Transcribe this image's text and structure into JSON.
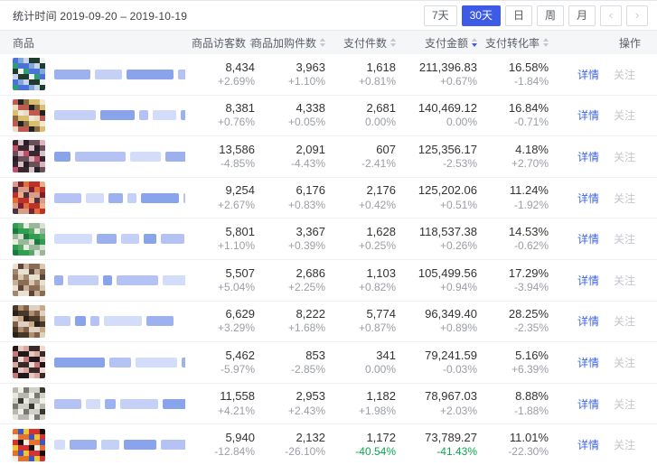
{
  "colors": {
    "accent_blue": "#3d5be4",
    "link_blue": "#3e63e8",
    "green": "#0ca64e",
    "header_bg": "#f5f6f8",
    "muted_gray": "#9a9ea6",
    "follow_gray": "#c3c6cc"
  },
  "topbar": {
    "stats_label": "统计时间",
    "date_range": "2019-09-20 – 2019-10-19",
    "range_buttons": [
      {
        "label": "7天",
        "active": false
      },
      {
        "label": "30天",
        "active": true
      },
      {
        "label": "日",
        "active": false
      },
      {
        "label": "周",
        "active": false
      },
      {
        "label": "月",
        "active": false
      }
    ],
    "pager": {
      "prev": "‹",
      "next": "›"
    }
  },
  "table": {
    "columns": [
      {
        "label": "商品",
        "sortable": false,
        "sorted": ""
      },
      {
        "label": "商品访客数",
        "sortable": true,
        "sorted": ""
      },
      {
        "label": "商品加购件数",
        "sortable": true,
        "sorted": ""
      },
      {
        "label": "支付件数",
        "sortable": true,
        "sorted": ""
      },
      {
        "label": "支付金额",
        "sortable": true,
        "sorted": "desc"
      },
      {
        "label": "支付转化率",
        "sortable": true,
        "sorted": ""
      },
      {
        "label": "操作",
        "sortable": false,
        "sorted": ""
      }
    ],
    "actions": {
      "detail": "详情",
      "follow": "关注"
    },
    "rows": [
      {
        "visitors": "8,434",
        "visitors_change": "+2.69%",
        "cart": "3,963",
        "cart_change": "+1.10%",
        "paid": "1,618",
        "paid_change": "+0.81%",
        "amount": "211,396.83",
        "amount_change": "+0.67%",
        "conversion": "16.58%",
        "conversion_change": "-1.84%",
        "green": [],
        "thumb_palette": [
          "#4a72d8",
          "#2f9e77",
          "#eef2ee",
          "#1e3b2e",
          "#c8d4e8",
          "#7fa8d8"
        ],
        "title_segments": [
          40,
          30,
          52,
          16,
          28
        ]
      },
      {
        "visitors": "8,381",
        "visitors_change": "+0.76%",
        "cart": "4,338",
        "cart_change": "+0.05%",
        "paid": "2,681",
        "paid_change": "0.00%",
        "amount": "140,469.12",
        "amount_change": "0.00%",
        "conversion": "16.84%",
        "conversion_change": "-0.71%",
        "green": [],
        "thumb_palette": [
          "#d8c070",
          "#8a6a40",
          "#222222",
          "#c05a50",
          "#e8dcc8",
          "#f0e8d8"
        ],
        "title_segments": [
          46,
          38,
          10,
          26,
          30
        ]
      },
      {
        "visitors": "13,586",
        "visitors_change": "-4.85%",
        "cart": "2,091",
        "cart_change": "-4.43%",
        "paid": "607",
        "paid_change": "-2.41%",
        "amount": "125,356.17",
        "amount_change": "-2.53%",
        "conversion": "4.18%",
        "conversion_change": "+2.70%",
        "green": [],
        "thumb_palette": [
          "#38282e",
          "#c25068",
          "#e0b0bc",
          "#685058",
          "#282026",
          "#d8c0c8"
        ],
        "title_segments": [
          18,
          56,
          34,
          40
        ]
      },
      {
        "visitors": "9,254",
        "visitors_change": "+2.67%",
        "cart": "6,176",
        "cart_change": "+0.83%",
        "paid": "2,176",
        "paid_change": "+0.42%",
        "amount": "125,202.06",
        "amount_change": "+0.51%",
        "conversion": "11.24%",
        "conversion_change": "-1.92%",
        "green": [],
        "thumb_palette": [
          "#c03028",
          "#e07038",
          "#781f30",
          "#d89c88",
          "#483440",
          "#e8b088"
        ],
        "title_segments": [
          30,
          20,
          16,
          10,
          42,
          24,
          10
        ]
      },
      {
        "visitors": "5,801",
        "visitors_change": "+1.10%",
        "cart": "3,367",
        "cart_change": "+0.39%",
        "paid": "1,628",
        "paid_change": "+0.25%",
        "amount": "118,537.38",
        "amount_change": "+0.26%",
        "conversion": "14.53%",
        "conversion_change": "-0.62%",
        "green": [],
        "thumb_palette": [
          "#2f9e50",
          "#1a7a40",
          "#d8e0d4",
          "#98b898",
          "#e8ece0",
          "#58a868"
        ],
        "title_segments": [
          42,
          22,
          20,
          14,
          26,
          20
        ]
      },
      {
        "visitors": "5,507",
        "visitors_change": "+5.04%",
        "cart": "2,686",
        "cart_change": "+2.25%",
        "paid": "1,103",
        "paid_change": "+0.82%",
        "amount": "105,499.56",
        "amount_change": "+0.94%",
        "conversion": "17.29%",
        "conversion_change": "-3.94%",
        "green": [],
        "thumb_palette": [
          "#8a6c55",
          "#c8b098",
          "#5a4538",
          "#e8e0d0",
          "#a08870",
          "#d8c8b0"
        ],
        "title_segments": [
          10,
          34,
          10,
          46,
          56
        ]
      },
      {
        "visitors": "6,629",
        "visitors_change": "+3.29%",
        "cart": "8,222",
        "cart_change": "+1.68%",
        "paid": "5,774",
        "paid_change": "+0.87%",
        "amount": "96,349.40",
        "amount_change": "+0.89%",
        "conversion": "28.25%",
        "conversion_change": "-2.35%",
        "green": [],
        "thumb_palette": [
          "#483828",
          "#2a2018",
          "#c8a888",
          "#e0d0c0",
          "#806048",
          "#b09070"
        ],
        "title_segments": [
          18,
          12,
          10,
          42,
          30
        ]
      },
      {
        "visitors": "5,462",
        "visitors_change": "-5.97%",
        "cart": "853",
        "cart_change": "-2.85%",
        "paid": "341",
        "paid_change": "0.00%",
        "amount": "79,241.59",
        "amount_change": "-0.03%",
        "conversion": "5.16%",
        "conversion_change": "+6.39%",
        "green": [],
        "thumb_palette": [
          "#382a28",
          "#d8a8a0",
          "#e8c8c0",
          "#201818",
          "#c87878",
          "#f0d8d0"
        ],
        "title_segments": [
          56,
          24,
          46,
          10
        ]
      },
      {
        "visitors": "11,558",
        "visitors_change": "+4.21%",
        "cart": "2,953",
        "cart_change": "+2.43%",
        "paid": "1,182",
        "paid_change": "+1.98%",
        "amount": "78,967.03",
        "amount_change": "+2.03%",
        "conversion": "8.88%",
        "conversion_change": "-1.88%",
        "green": [],
        "thumb_palette": [
          "#b8b8b0",
          "#e8e8e0",
          "#383830",
          "#d0d0c8",
          "#787870",
          "#f0f0e8"
        ],
        "title_segments": [
          30,
          16,
          12,
          42,
          30,
          18
        ]
      },
      {
        "visitors": "5,940",
        "visitors_change": "-12.84%",
        "cart": "2,132",
        "cart_change": "-26.10%",
        "paid": "1,172",
        "paid_change": "-40.54%",
        "amount": "73,789.27",
        "amount_change": "-41.43%",
        "conversion": "11.01%",
        "conversion_change": "-22.30%",
        "green": [
          "paid_change",
          "amount_change"
        ],
        "thumb_palette": [
          "#d83030",
          "#e8c838",
          "#3858c8",
          "#e87028",
          "#f0f0e8",
          "#101010"
        ],
        "title_segments": [
          12,
          30,
          20,
          36,
          30
        ]
      }
    ]
  }
}
